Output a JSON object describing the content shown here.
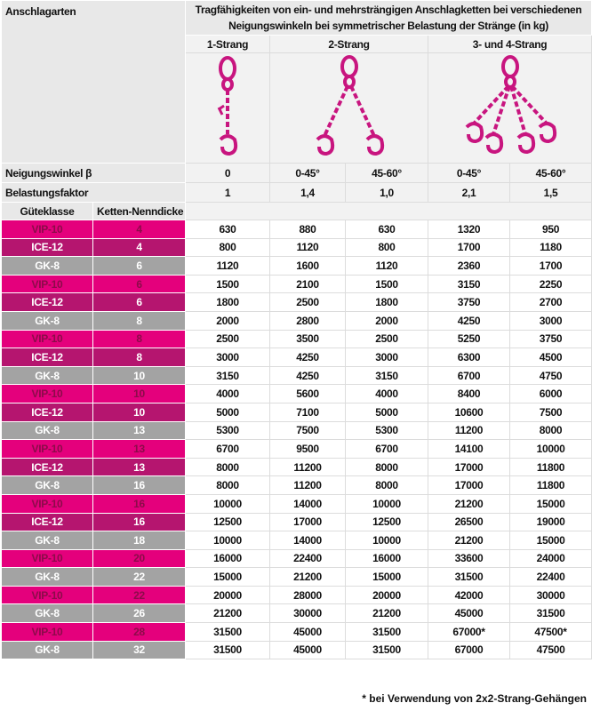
{
  "header": {
    "col_label": "Anschlagarten",
    "title_line1": "Tragfähigkeiten von ein- und mehrsträngigen Anschlagketten bei verschiedenen",
    "title_line2": "Neigungswinkeln bei symmetrischer Belastung der Stränge (in kg)",
    "groups": [
      "1-Strang",
      "2-Strang",
      "3- und 4-Strang"
    ]
  },
  "angle_row": {
    "label": "Neigungswinkel β",
    "values": [
      "0",
      "0-45°",
      "45-60°",
      "0-45°",
      "45-60°"
    ]
  },
  "factor_row": {
    "label": "Belastungsfaktor",
    "values": [
      "1",
      "1,4",
      "1,0",
      "2,1",
      "1,5"
    ]
  },
  "class_styles": {
    "VIP-10": {
      "bg": "#e4007c",
      "fg": "#8c0b4a"
    },
    "ICE-12": {
      "bg": "#b5156f",
      "fg": "#ffffff"
    },
    "GK-8": {
      "bg": "#a3a3a3",
      "fg": "#ffffff"
    }
  },
  "table": {
    "columns": [
      "Güteklasse",
      "Ketten-Nenndicke"
    ],
    "rows": [
      [
        "VIP-10",
        4,
        630,
        880,
        630,
        1320,
        950
      ],
      [
        "ICE-12",
        4,
        800,
        1120,
        800,
        1700,
        1180
      ],
      [
        "GK-8",
        6,
        1120,
        1600,
        1120,
        2360,
        1700
      ],
      [
        "VIP-10",
        6,
        1500,
        2100,
        1500,
        3150,
        2250
      ],
      [
        "ICE-12",
        6,
        1800,
        2500,
        1800,
        3750,
        2700
      ],
      [
        "GK-8",
        8,
        2000,
        2800,
        2000,
        4250,
        3000
      ],
      [
        "VIP-10",
        8,
        2500,
        3500,
        2500,
        5250,
        3750
      ],
      [
        "ICE-12",
        8,
        3000,
        4250,
        3000,
        6300,
        4500
      ],
      [
        "GK-8",
        10,
        3150,
        4250,
        3150,
        6700,
        4750
      ],
      [
        "VIP-10",
        10,
        4000,
        5600,
        4000,
        8400,
        6000
      ],
      [
        "ICE-12",
        10,
        5000,
        7100,
        5000,
        10600,
        7500
      ],
      [
        "GK-8",
        13,
        5300,
        7500,
        5300,
        11200,
        8000
      ],
      [
        "VIP-10",
        13,
        6700,
        9500,
        6700,
        14100,
        10000
      ],
      [
        "ICE-12",
        13,
        8000,
        11200,
        8000,
        17000,
        11800
      ],
      [
        "GK-8",
        16,
        8000,
        11200,
        8000,
        17000,
        11800
      ],
      [
        "VIP-10",
        16,
        10000,
        14000,
        10000,
        21200,
        15000
      ],
      [
        "ICE-12",
        16,
        12500,
        17000,
        12500,
        26500,
        19000
      ],
      [
        "GK-8",
        18,
        10000,
        14000,
        10000,
        21200,
        15000
      ],
      [
        "VIP-10",
        20,
        16000,
        22400,
        16000,
        33600,
        24000
      ],
      [
        "GK-8",
        22,
        15000,
        21200,
        15000,
        31500,
        22400
      ],
      [
        "VIP-10",
        22,
        20000,
        28000,
        20000,
        42000,
        30000
      ],
      [
        "GK-8",
        26,
        21200,
        30000,
        21200,
        45000,
        31500
      ],
      [
        "VIP-10",
        28,
        31500,
        45000,
        31500,
        "67000*",
        "47500*"
      ],
      [
        "GK-8",
        32,
        31500,
        45000,
        31500,
        67000,
        47500
      ]
    ]
  },
  "footnote": "* bei Verwendung von 2x2-Strang-Gehängen"
}
